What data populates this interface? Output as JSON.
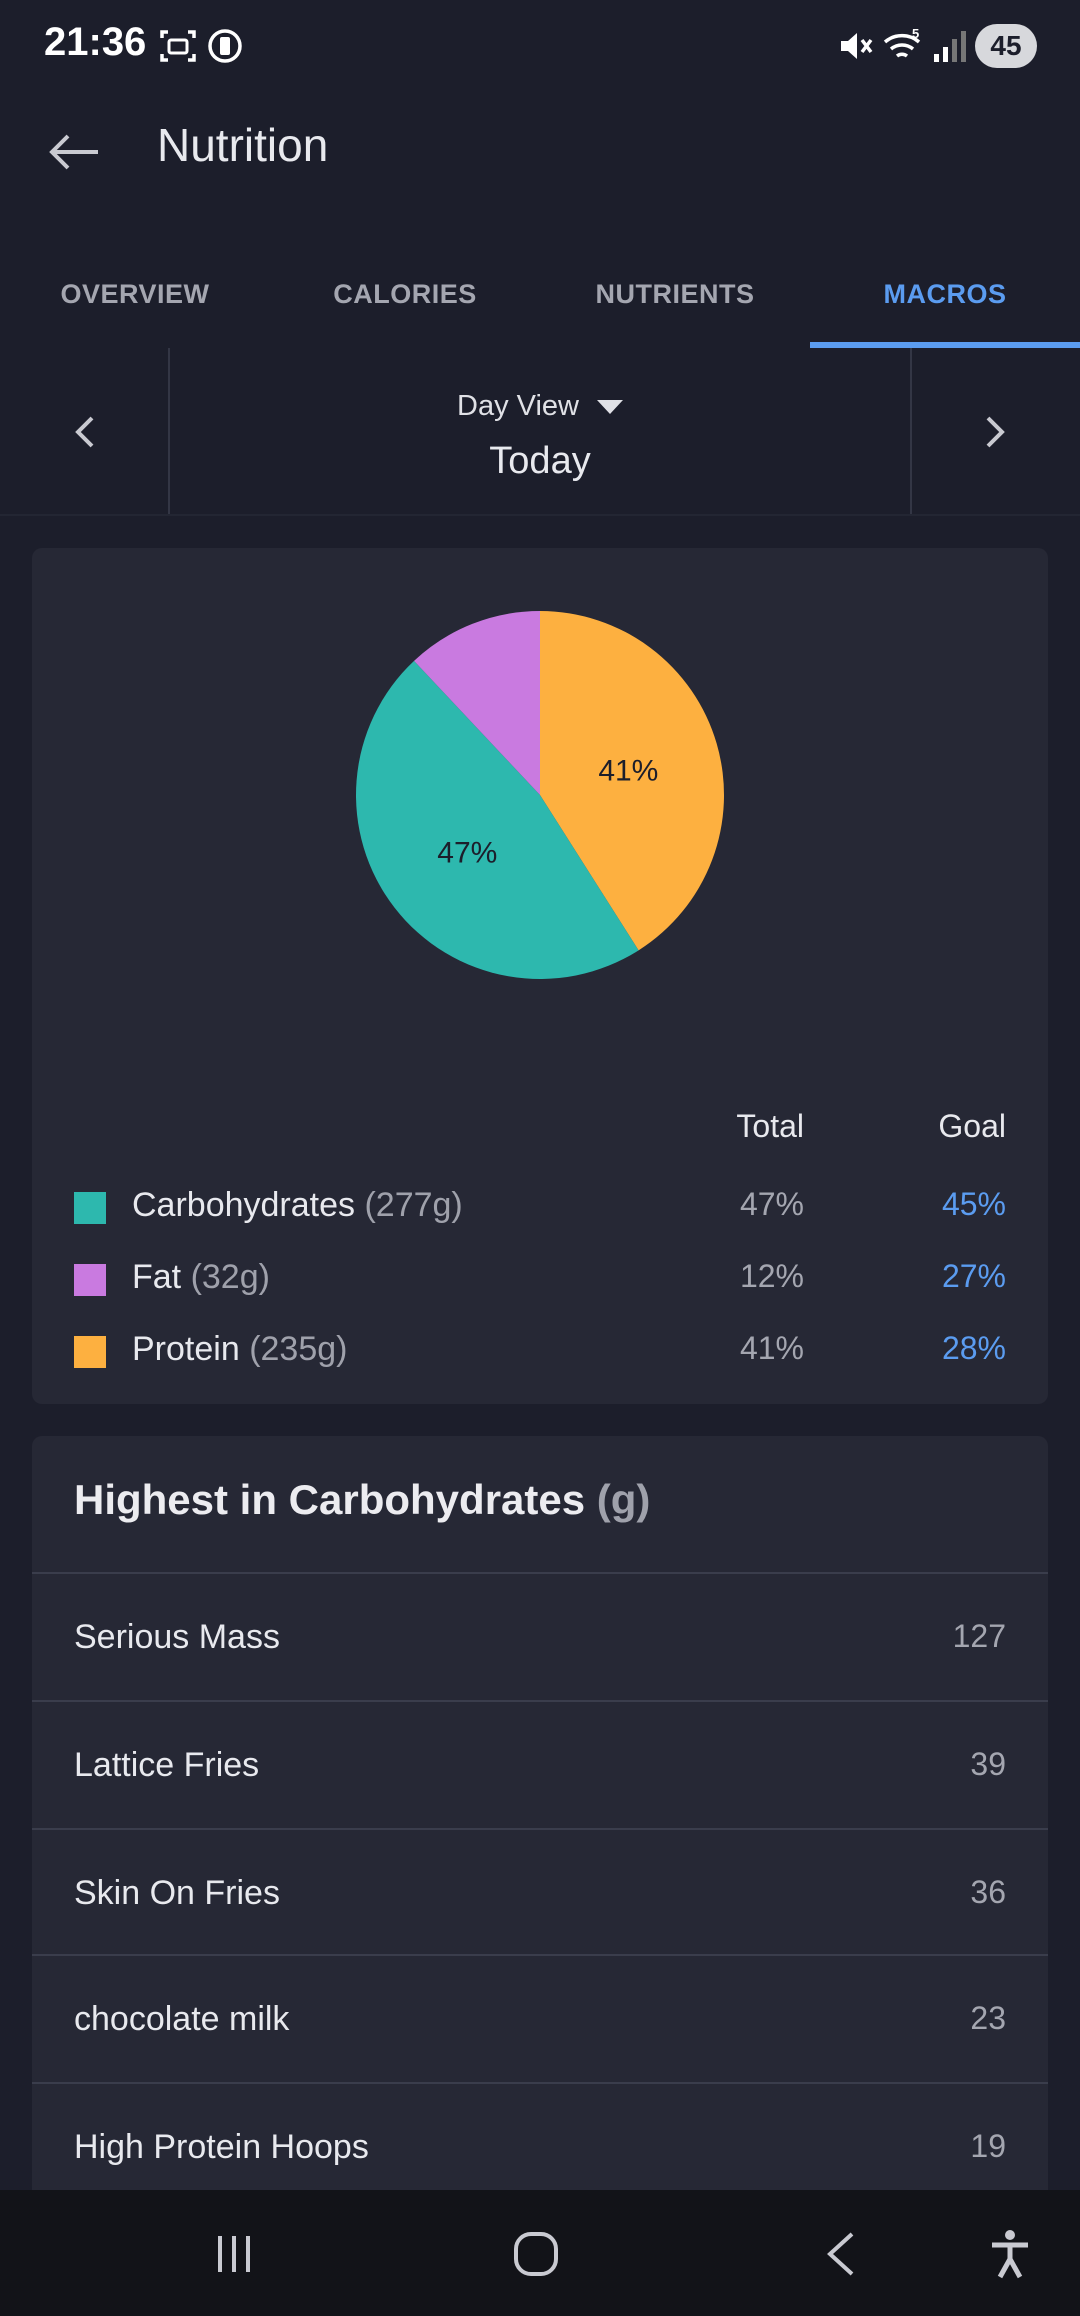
{
  "status_bar": {
    "time": "21:36",
    "battery": "45",
    "icons": [
      "screenshot-icon",
      "alarm-icon",
      "mute-icon",
      "wifi-icon",
      "signal-icon"
    ]
  },
  "app_bar": {
    "title": "Nutrition",
    "back_icon": "arrow-left-icon"
  },
  "tabs": [
    {
      "label": "OVERVIEW",
      "active": false
    },
    {
      "label": "CALORIES",
      "active": false
    },
    {
      "label": "NUTRIENTS",
      "active": false
    },
    {
      "label": "MACROS",
      "active": true
    }
  ],
  "date_nav": {
    "view_label": "Day View",
    "date_label": "Today"
  },
  "macros": {
    "headers": {
      "total": "Total",
      "goal": "Goal"
    },
    "items": [
      {
        "name": "Carbohydrates",
        "grams": "(277g)",
        "total": "47%",
        "goal": "45%",
        "color": "#2db8ae"
      },
      {
        "name": "Fat",
        "grams": "(32g)",
        "total": "12%",
        "goal": "27%",
        "color": "#c97ae0"
      },
      {
        "name": "Protein",
        "grams": "(235g)",
        "total": "41%",
        "goal": "28%",
        "color": "#fdb040"
      }
    ]
  },
  "chart_data": {
    "type": "pie",
    "categories": [
      "Carbohydrates",
      "Fat",
      "Protein"
    ],
    "values": [
      47,
      12,
      41
    ],
    "slice_labels": [
      "47%",
      "",
      "41%"
    ],
    "colors": [
      "#2db8ae",
      "#c97ae0",
      "#fdb040"
    ]
  },
  "highest": {
    "title": "Highest in Carbohydrates",
    "unit": "(g)",
    "items": [
      {
        "name": "Serious Mass",
        "value": "127"
      },
      {
        "name": "Lattice Fries",
        "value": "39"
      },
      {
        "name": "Skin On Fries",
        "value": "36"
      },
      {
        "name": "chocolate milk",
        "value": "23"
      },
      {
        "name": "High Protein Hoops",
        "value": "19"
      }
    ]
  },
  "system_nav": {
    "icons": [
      "recents-icon",
      "home-icon",
      "back-icon",
      "accessibility-icon"
    ]
  }
}
